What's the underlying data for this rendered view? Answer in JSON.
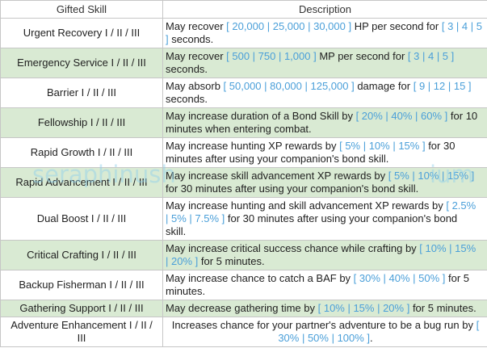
{
  "table": {
    "header": {
      "skill": "Gifted Skill",
      "description": "Description"
    },
    "rows": [
      {
        "skill": [
          "Urgent Recovery I / II / III"
        ],
        "description": [
          [
            {
              "text": "May recover "
            },
            {
              "text": "[ 20,000 | 25,000 | 30,000 ]",
              "highlight": true
            },
            {
              "text": " HP per second for "
            },
            {
              "text": "[ 3 | 4 | 5",
              "highlight": true
            }
          ],
          [
            {
              "text": "]",
              "highlight": true
            },
            {
              "text": " seconds."
            }
          ]
        ]
      },
      {
        "skill": [
          "Emergency Service I / II / III"
        ],
        "description": [
          [
            {
              "text": "May recover "
            },
            {
              "text": "[ 500 | 750 | 1,000 ]",
              "highlight": true
            },
            {
              "text": " MP per second for "
            },
            {
              "text": "[ 3 | 4 | 5 ]",
              "highlight": true
            }
          ],
          [
            {
              "text": "seconds."
            }
          ]
        ]
      },
      {
        "skill": [
          "Barrier I / II / III"
        ],
        "description": [
          [
            {
              "text": "May absorb "
            },
            {
              "text": "[ 50,000 | 80,000 | 125,000 ]",
              "highlight": true
            },
            {
              "text": " damage for "
            },
            {
              "text": "[ 9 | 12 | 15 ]",
              "highlight": true
            }
          ],
          [
            {
              "text": "seconds."
            }
          ]
        ]
      },
      {
        "skill": [
          "Fellowship I / II / III"
        ],
        "description": [
          [
            {
              "text": "May increase duration of a Bond Skill by "
            },
            {
              "text": "[ 20% | 40% | 60% ]",
              "highlight": true
            },
            {
              "text": " for 10"
            }
          ],
          [
            {
              "text": "minutes when entering combat."
            }
          ]
        ]
      },
      {
        "skill": [
          "Rapid Growth I / II / III"
        ],
        "description": [
          [
            {
              "text": "May increase hunting XP rewards by "
            },
            {
              "text": "[ 5% | 10% | 15% ]",
              "highlight": true
            },
            {
              "text": " for 30"
            }
          ],
          [
            {
              "text": "minutes after using your companion's bond skill."
            }
          ]
        ]
      },
      {
        "skill": [
          "Rapid Advancement I / II / III"
        ],
        "description": [
          [
            {
              "text": "May increase skill advancement XP rewards by "
            },
            {
              "text": "[ 5% | 10% | 15% ]",
              "highlight": true
            }
          ],
          [
            {
              "text": "for 30 minutes after using your companion's bond skill."
            }
          ]
        ]
      },
      {
        "skill": [
          "Dual Boost I / II / III"
        ],
        "description": [
          [
            {
              "text": "May increase hunting and skill advancement XP rewards by "
            },
            {
              "text": "[ 2.5%",
              "highlight": true
            }
          ],
          [
            {
              "text": "| 5% | 7.5% ]",
              "highlight": true
            },
            {
              "text": " for 30 minutes after using your companion's bond"
            }
          ],
          [
            {
              "text": "skill."
            }
          ]
        ]
      },
      {
        "skill": [
          "Critical Crafting I / II / III"
        ],
        "description": [
          [
            {
              "text": "May increase critical success chance while crafting by "
            },
            {
              "text": "[ 10% | 15%",
              "highlight": true
            }
          ],
          [
            {
              "text": "| 20% ]",
              "highlight": true
            },
            {
              "text": " for 5 minutes."
            }
          ]
        ]
      },
      {
        "skill": [
          "Backup Fisherman I / II / III"
        ],
        "description": [
          [
            {
              "text": "May increase chance to catch a BAF by "
            },
            {
              "text": "[ 30% | 40% | 50% ]",
              "highlight": true
            },
            {
              "text": " for 5"
            }
          ],
          [
            {
              "text": "minutes."
            }
          ]
        ]
      },
      {
        "skill": [
          "Gathering Support I / II / III"
        ],
        "description": [
          [
            {
              "text": "May decrease gathering time by "
            },
            {
              "text": "[ 10% | 15% | 20% ]",
              "highlight": true
            },
            {
              "text": " for 5 minutes."
            }
          ]
        ]
      },
      {
        "skill": [
          "Adventure Enhancement I / II /",
          "III"
        ],
        "description": [
          [
            {
              "text": "Increases chance for your partner's adventure to be a bug run by "
            },
            {
              "text": "[",
              "highlight": true
            }
          ],
          [
            {
              "text": "30% | 50% | 100% ]",
              "highlight": true
            },
            {
              "text": "."
            }
          ]
        ]
      }
    ]
  },
  "colors": {
    "text": "#212121",
    "highlight": "#4a9fd9",
    "row_bg": "#ffffff",
    "alt_row_bg": "#d9ead3",
    "border": "#c6c6c6",
    "watermark": "#8fd0ec"
  },
  "watermark": {
    "left": "seraphinush",
    "right": "ium"
  }
}
